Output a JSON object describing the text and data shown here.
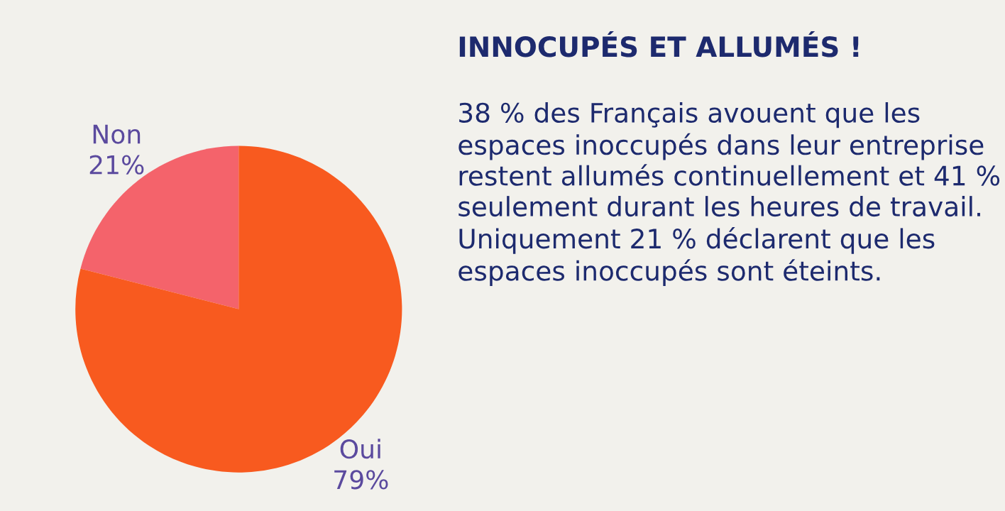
{
  "chart_data": {
    "type": "pie",
    "title": "INNOCUPÉS ET ALLUMÉS !",
    "categories": [
      "Non",
      "Oui"
    ],
    "values": [
      21,
      79
    ],
    "value_labels": [
      "21%",
      "79%"
    ],
    "colors": [
      "#f4636b",
      "#f85a1f"
    ],
    "annotations": [
      "38 % des Français avouent que les espaces inoccupés dans leur entreprise restent allumés continuellement et 41 % seulement durant les heures de travail. Uniquement 21 % déclarent que les espaces inoccupés sont éteints."
    ],
    "legend": false
  }
}
